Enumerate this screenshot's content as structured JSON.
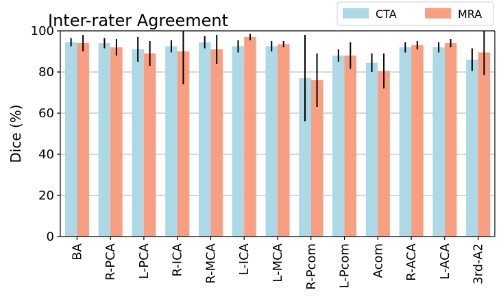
{
  "chart_data": {
    "type": "bar",
    "title": "Inter-rater Agreement",
    "xlabel": "",
    "ylabel": "Dice (%)",
    "ylim": [
      0,
      100
    ],
    "yticks": [
      0,
      20,
      40,
      60,
      80,
      100
    ],
    "grid": "horizontal",
    "legend_position": "top-right",
    "categories": [
      "BA",
      "R-PCA",
      "L-PCA",
      "R-ICA",
      "R-MCA",
      "L-ICA",
      "L-MCA",
      "R-Pcom",
      "L-Pcom",
      "Acom",
      "R-ACA",
      "L-ACA",
      "3rd-A2"
    ],
    "series": [
      {
        "name": "CTA",
        "color": "#add8e6",
        "values": [
          94.5,
          94,
          91,
          92.5,
          94.5,
          92.5,
          92.5,
          77,
          88,
          84.5,
          92,
          92,
          86
        ],
        "error": [
          2,
          2.5,
          6,
          3,
          3,
          3,
          2.5,
          21,
          3,
          4.5,
          2.5,
          2.5,
          5.5
        ]
      },
      {
        "name": "MRA",
        "color": "#fa9e82",
        "values": [
          94,
          92,
          89,
          90,
          91,
          97,
          93.5,
          76,
          88,
          80.5,
          93,
          94,
          89.5
        ],
        "error": [
          4,
          4,
          6,
          16,
          7,
          1.5,
          1.5,
          13,
          6.5,
          8.5,
          2,
          2,
          11
        ]
      }
    ]
  }
}
